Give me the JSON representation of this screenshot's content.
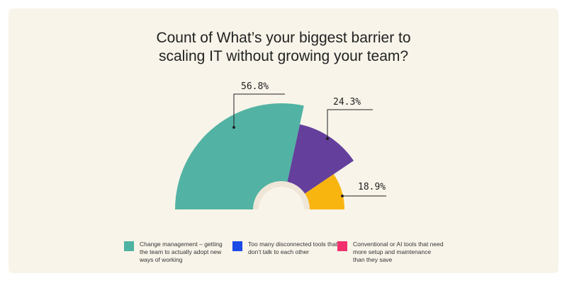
{
  "chart_data": {
    "type": "pie",
    "title": "Count of What’s your biggest barrier to scaling IT without growing your team?",
    "values": [
      56.8,
      24.3,
      18.9
    ],
    "value_labels": [
      "56.8%",
      "24.3%",
      "18.9%"
    ],
    "colors": [
      "#52b3a4",
      "#643f9c",
      "#f8b40f"
    ],
    "legend": [
      {
        "name": "Change management – getting the team to actually adopt new ways of working",
        "color": "#4fb3a3"
      },
      {
        "name": "Too many disconnected tools that don’t talk to each other",
        "color": "#1a4be6"
      },
      {
        "name": "Conventional or AI tools that need more setup and maintenance than they save",
        "color": "#f2306e"
      }
    ]
  }
}
